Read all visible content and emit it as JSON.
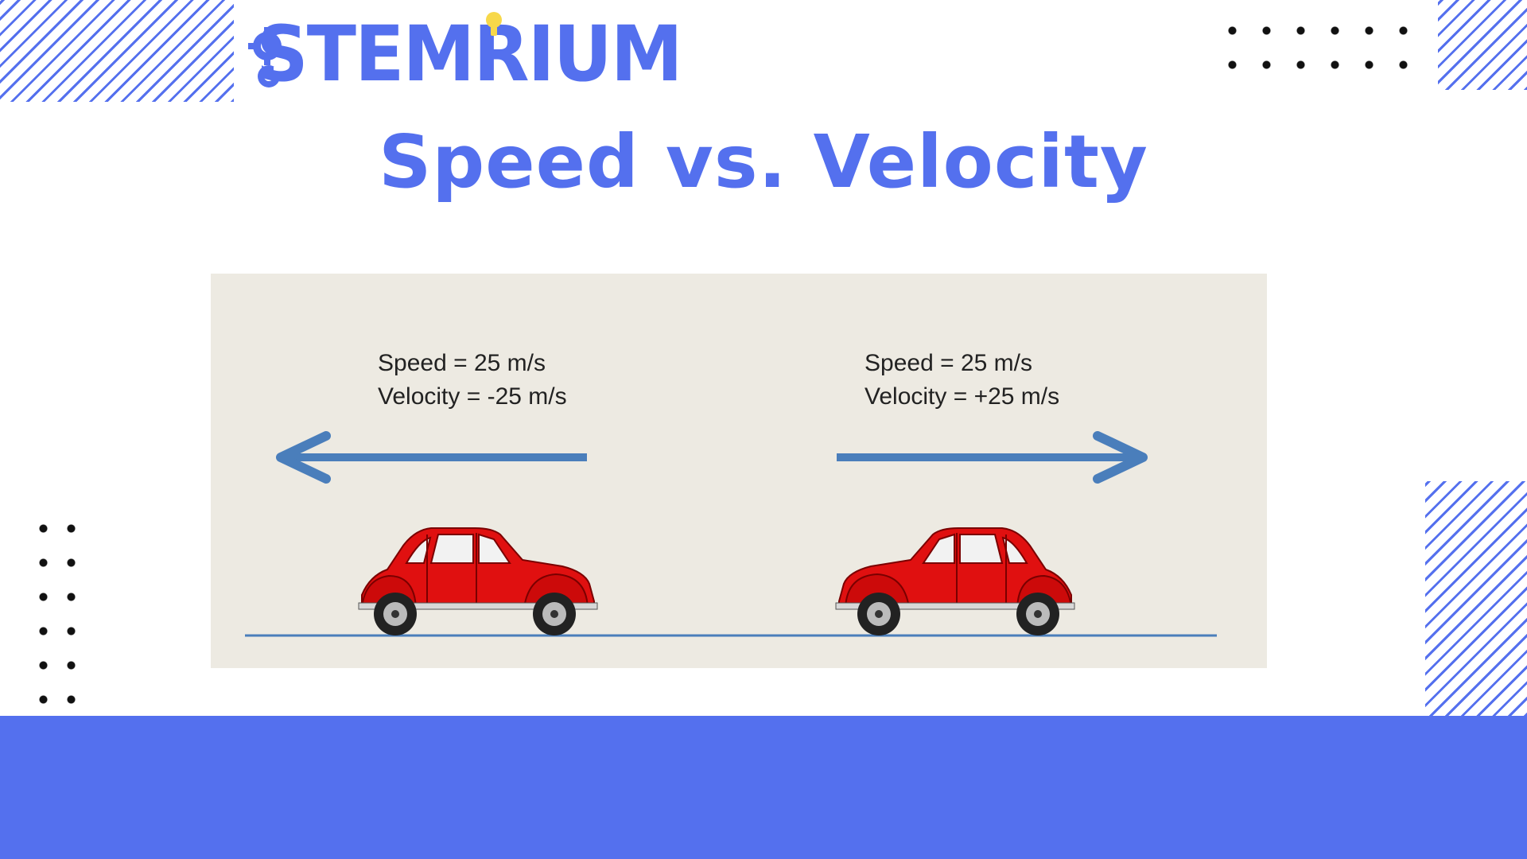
{
  "brand": {
    "logo_text": "STEMRIUM"
  },
  "title": "Speed vs. Velocity",
  "diagram": {
    "left_car": {
      "speed_text": "Speed = 25 m/s",
      "velocity_text": "Velocity = -25 m/s",
      "direction": "left"
    },
    "right_car": {
      "speed_text": "Speed = 25 m/s",
      "velocity_text": "Velocity = +25 m/s",
      "direction": "right"
    }
  },
  "colors": {
    "accent": "#5470ee",
    "diagram_background": "#edeae2",
    "arrow": "#4a7ebb",
    "car_body": "#e01010",
    "ground_line": "#4a7ebb"
  }
}
